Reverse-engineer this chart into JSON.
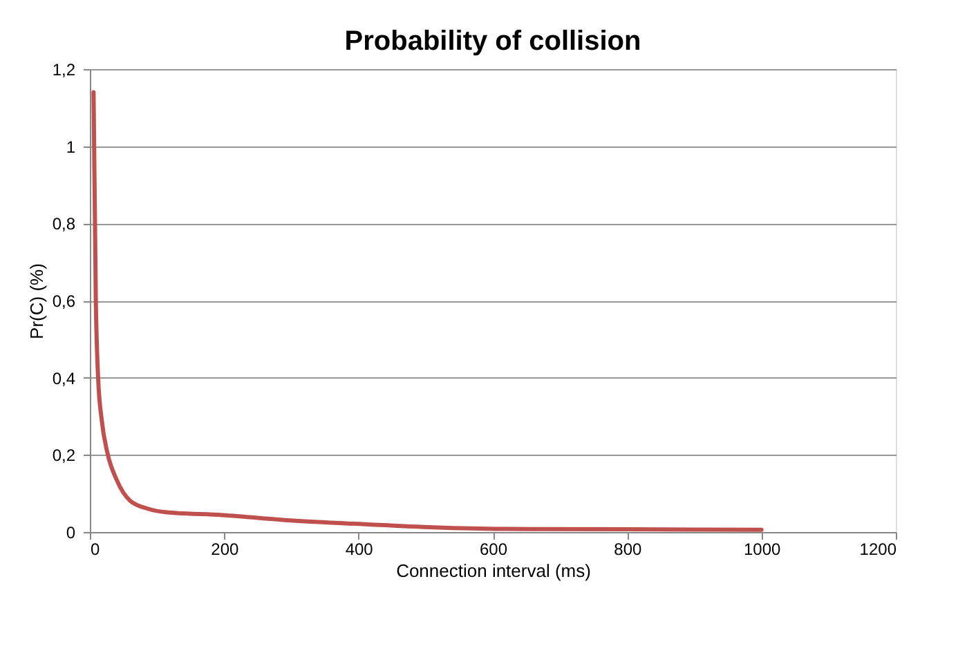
{
  "chart_data": {
    "type": "line",
    "title": "Probability of collision",
    "xlabel": "Connection interval (ms)",
    "ylabel": "Pr(C) (%)",
    "series": [
      {
        "color": "#c0504d",
        "x": [
          5.5,
          8.9,
          12.3,
          17.7,
          26,
          40,
          60,
          87,
          115,
          197,
          299,
          410,
          512,
          614,
          800,
          1000
        ],
        "values": [
          1.14,
          0.6,
          0.4,
          0.29,
          0.206,
          0.135,
          0.081,
          0.06,
          0.051,
          0.044,
          0.03,
          0.02,
          0.012,
          0.008,
          0.007,
          0.006
        ]
      }
    ],
    "xlim": [
      0,
      1200
    ],
    "xticks": [
      0,
      200,
      400,
      600,
      800,
      1000,
      1200
    ],
    "ylim": [
      0,
      1.2
    ],
    "yticks": [
      0,
      {
        "value": 0.2,
        "label": "0,2"
      },
      {
        "value": 0.4,
        "label": "0,4"
      },
      {
        "value": 0.6,
        "label": "0,6"
      },
      {
        "value": 0.8,
        "label": "0,8"
      },
      1,
      {
        "value": 1.2,
        "label": "1,2"
      }
    ],
    "grid": "y",
    "marker": "none",
    "line_style": "solid"
  }
}
